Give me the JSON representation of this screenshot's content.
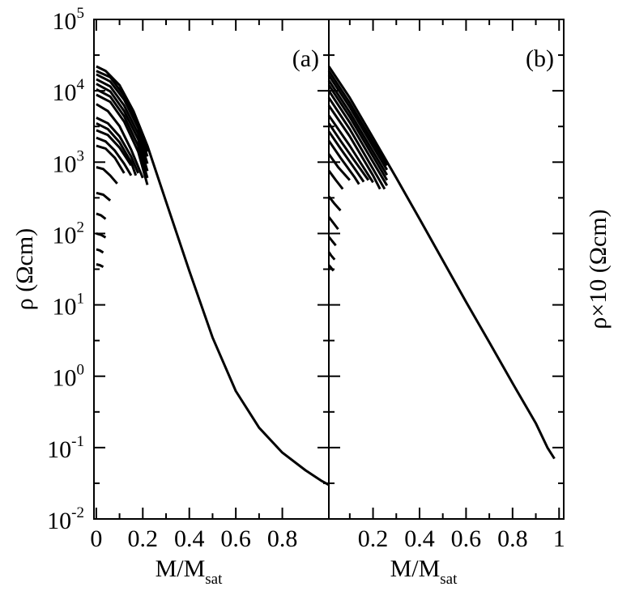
{
  "chart_data": [
    {
      "type": "line",
      "panel": "(a)",
      "xlabel_main": "M/M",
      "xlabel_sub": "sat",
      "ylabel": "ρ (Ωcm)",
      "xlim": [
        -0.01,
        1.0
      ],
      "ylim_log10": [
        -2,
        5
      ],
      "y_scale": "log",
      "x_ticks": [
        0,
        0.2,
        0.4,
        0.6,
        0.8
      ],
      "x_tick_labels": [
        "0",
        "0.2",
        "0.4",
        "0.6",
        "0.8"
      ],
      "y_tick_exponents": [
        -2,
        -1,
        0,
        1,
        2,
        3,
        4,
        5
      ],
      "y_tick_base": "10",
      "y_tick_labels": [
        "-2",
        "-1",
        "0",
        "1",
        "2",
        "3",
        "4",
        "5"
      ],
      "series": [
        {
          "x": [
            0,
            0.04,
            0.1,
            0.16,
            0.22,
            0.3,
            0.4,
            0.5,
            0.6,
            0.7,
            0.8,
            0.9,
            0.97,
            1.0
          ],
          "y": [
            22000,
            19000,
            12000,
            5200,
            1700,
            280,
            30,
            3.5,
            0.62,
            0.19,
            0.085,
            0.048,
            0.034,
            0.03
          ]
        },
        {
          "x": [
            0,
            0.06,
            0.12,
            0.18,
            0.22
          ],
          "y": [
            19000,
            15500,
            8500,
            3400,
            1400
          ]
        },
        {
          "x": [
            0,
            0.06,
            0.12,
            0.18,
            0.22
          ],
          "y": [
            17000,
            13500,
            7500,
            3000,
            1200
          ]
        },
        {
          "x": [
            0,
            0.06,
            0.12,
            0.18,
            0.22
          ],
          "y": [
            14500,
            11500,
            6200,
            2500,
            950
          ]
        },
        {
          "x": [
            0,
            0.06,
            0.12,
            0.18,
            0.22
          ],
          "y": [
            12500,
            9800,
            5200,
            2100,
            750
          ]
        },
        {
          "x": [
            0,
            0.06,
            0.12,
            0.18,
            0.22
          ],
          "y": [
            10500,
            8300,
            4400,
            1700,
            600
          ]
        },
        {
          "x": [
            0,
            0.06,
            0.12,
            0.18,
            0.22
          ],
          "y": [
            8800,
            7000,
            3700,
            1400,
            480
          ]
        },
        {
          "x": [
            0,
            0.05,
            0.1,
            0.15,
            0.2
          ],
          "y": [
            6500,
            5200,
            3200,
            1500,
            600
          ]
        },
        {
          "x": [
            0,
            0.05,
            0.1,
            0.15,
            0.18
          ],
          "y": [
            4200,
            3500,
            2300,
            1200,
            700
          ]
        },
        {
          "x": [
            0,
            0.05,
            0.1,
            0.15,
            0.17
          ],
          "y": [
            3500,
            2900,
            1900,
            1000,
            650
          ]
        },
        {
          "x": [
            0,
            0.05,
            0.1,
            0.15
          ],
          "y": [
            2800,
            2400,
            1600,
            900
          ]
        },
        {
          "x": [
            0,
            0.04,
            0.08,
            0.12,
            0.15
          ],
          "y": [
            2200,
            1950,
            1450,
            950,
            650
          ]
        },
        {
          "x": [
            0,
            0.04,
            0.08,
            0.12
          ],
          "y": [
            1700,
            1550,
            1150,
            700
          ]
        },
        {
          "x": [
            0,
            0.03,
            0.06,
            0.09
          ],
          "y": [
            850,
            800,
            650,
            500
          ]
        },
        {
          "x": [
            0,
            0.03,
            0.06
          ],
          "y": [
            370,
            350,
            290
          ]
        },
        {
          "x": [
            0,
            0.02,
            0.04
          ],
          "y": [
            190,
            180,
            160
          ]
        },
        {
          "x": [
            0,
            0.02,
            0.04
          ],
          "y": [
            100,
            96,
            88
          ]
        },
        {
          "x": [
            0,
            0.015,
            0.03
          ],
          "y": [
            60,
            58,
            54
          ]
        },
        {
          "x": [
            0,
            0.015,
            0.03
          ],
          "y": [
            37,
            36,
            34
          ]
        }
      ]
    },
    {
      "type": "line",
      "panel": "(b)",
      "xlabel_main": "M/M",
      "xlabel_sub": "sat",
      "ylabel": "ρ×10 (Ωcm)",
      "xlim": [
        0.01,
        1.02
      ],
      "ylim_log10": [
        -2,
        5
      ],
      "y_scale": "log",
      "x_ticks": [
        0.2,
        0.4,
        0.6,
        0.8,
        1.0
      ],
      "x_tick_labels": [
        "0.2",
        "0.4",
        "0.6",
        "0.8",
        "1"
      ],
      "series": [
        {
          "x": [
            0.01,
            0.1,
            0.2,
            0.3,
            0.4,
            0.5,
            0.6,
            0.7,
            0.8,
            0.9,
            0.95,
            0.98
          ],
          "y": [
            22000,
            8000,
            2200,
            600,
            160,
            42,
            11,
            3.0,
            0.8,
            0.22,
            0.1,
            0.07
          ]
        },
        {
          "x": [
            0.01,
            0.1,
            0.2,
            0.26
          ],
          "y": [
            19000,
            6800,
            1900,
            900
          ]
        },
        {
          "x": [
            0.01,
            0.1,
            0.2,
            0.26
          ],
          "y": [
            16500,
            5900,
            1650,
            780
          ]
        },
        {
          "x": [
            0.01,
            0.1,
            0.2,
            0.26
          ],
          "y": [
            14000,
            5000,
            1400,
            660
          ]
        },
        {
          "x": [
            0.01,
            0.1,
            0.2,
            0.26
          ],
          "y": [
            12000,
            4300,
            1200,
            560
          ]
        },
        {
          "x": [
            0.01,
            0.1,
            0.2,
            0.26
          ],
          "y": [
            10000,
            3600,
            1000,
            470
          ]
        },
        {
          "x": [
            0.01,
            0.1,
            0.2,
            0.25
          ],
          "y": [
            8000,
            2900,
            800,
            420
          ]
        },
        {
          "x": [
            0.01,
            0.1,
            0.2,
            0.23
          ],
          "y": [
            6200,
            2300,
            650,
            420
          ]
        },
        {
          "x": [
            0.01,
            0.1,
            0.2
          ],
          "y": [
            4500,
            1700,
            520
          ]
        },
        {
          "x": [
            0.01,
            0.06,
            0.12,
            0.18
          ],
          "y": [
            3500,
            2000,
            1050,
            560
          ]
        },
        {
          "x": [
            0.01,
            0.06,
            0.12,
            0.16
          ],
          "y": [
            2700,
            1550,
            820,
            530
          ]
        },
        {
          "x": [
            0.01,
            0.06,
            0.12,
            0.14
          ],
          "y": [
            2000,
            1150,
            620,
            490
          ]
        },
        {
          "x": [
            0.01,
            0.05,
            0.1
          ],
          "y": [
            1300,
            850,
            560
          ]
        },
        {
          "x": [
            0.01,
            0.04,
            0.07
          ],
          "y": [
            760,
            560,
            420
          ]
        },
        {
          "x": [
            0.01,
            0.035,
            0.06
          ],
          "y": [
            330,
            260,
            210
          ]
        },
        {
          "x": [
            0.01,
            0.03,
            0.05
          ],
          "y": [
            170,
            140,
            115
          ]
        },
        {
          "x": [
            0.01,
            0.025,
            0.04
          ],
          "y": [
            90,
            78,
            68
          ]
        },
        {
          "x": [
            0.01,
            0.02,
            0.035
          ],
          "y": [
            55,
            49,
            43
          ]
        },
        {
          "x": [
            0.01,
            0.02,
            0.03
          ],
          "y": [
            36,
            33,
            30
          ]
        }
      ]
    }
  ]
}
